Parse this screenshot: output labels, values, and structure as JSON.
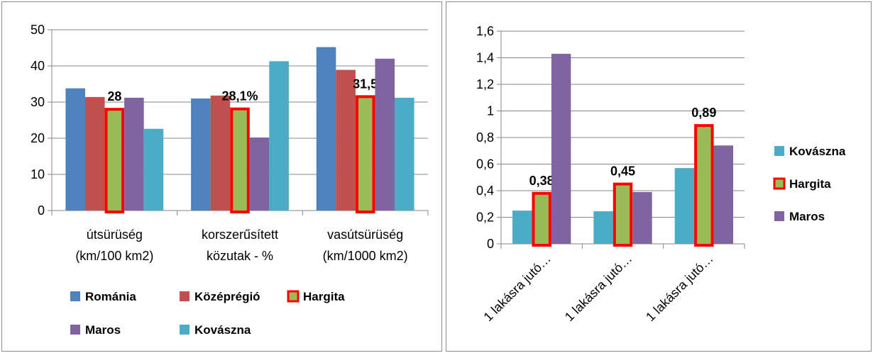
{
  "chart_data": [
    {
      "type": "bar",
      "categories": [
        [
          "útsürüség",
          "(km/100 km2)"
        ],
        [
          "korszerűsített",
          "közutak - %"
        ],
        [
          "vasútsürüség",
          "(km/1000 km2)"
        ]
      ],
      "ylim": [
        0,
        50
      ],
      "yticks": [
        "0",
        "10",
        "20",
        "30",
        "40",
        "50"
      ],
      "grid": true,
      "legend": "bottom",
      "highlight_series": "Hargita",
      "series": [
        {
          "name": "Románia",
          "color": "#4f81bd",
          "values": [
            33.8,
            31.0,
            45.2
          ]
        },
        {
          "name": "Középrégió",
          "color": "#c0504d",
          "values": [
            31.4,
            31.8,
            38.9
          ]
        },
        {
          "name": "Hargita",
          "color": "#9bbb59",
          "outline": "#ff0000",
          "values": [
            28,
            28.1,
            31.5
          ],
          "labels": [
            "28",
            "28,1%",
            "31,5"
          ]
        },
        {
          "name": "Maros",
          "color": "#8064a2",
          "values": [
            31.2,
            20.2,
            42.0
          ]
        },
        {
          "name": "Kovászna",
          "color": "#4bacc6",
          "values": [
            22.6,
            41.3,
            31.2
          ]
        }
      ]
    },
    {
      "type": "bar",
      "categories": [
        "1 lakásra jutó…",
        "1 lakásra jutó…",
        "1 lakásra jutó…"
      ],
      "ylim": [
        0,
        1.6
      ],
      "yticks": [
        "0",
        "0,2",
        "0,4",
        "0,6",
        "0,8",
        "1",
        "1,2",
        "1,4",
        "1,6"
      ],
      "grid": true,
      "legend": "right",
      "highlight_series": "Hargita",
      "series": [
        {
          "name": "Kovászna",
          "color": "#4bacc6",
          "values": [
            0.25,
            0.245,
            0.57
          ]
        },
        {
          "name": "Hargita",
          "color": "#9bbb59",
          "outline": "#ff0000",
          "values": [
            0.38,
            0.45,
            0.89
          ],
          "labels": [
            "0,38",
            "0,45",
            "0,89"
          ]
        },
        {
          "name": "Maros",
          "color": "#8064a2",
          "values": [
            1.43,
            0.39,
            0.74
          ]
        }
      ]
    }
  ]
}
